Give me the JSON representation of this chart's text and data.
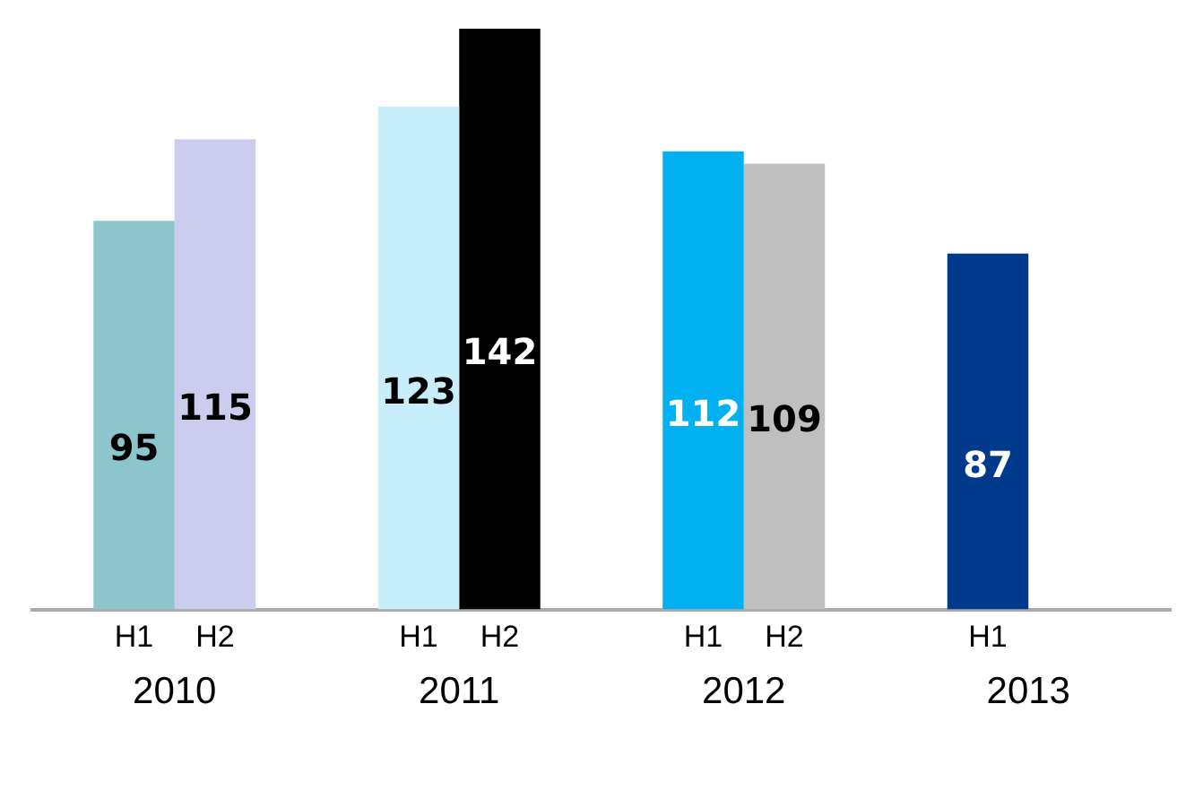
{
  "chart_data": {
    "type": "bar",
    "categories": [
      "2010",
      "2011",
      "2012",
      "2013"
    ],
    "series": [
      {
        "name": "H1",
        "values": [
          95,
          123,
          112,
          87
        ],
        "colors": [
          "#8cc5cc",
          "#c9eefb",
          "#00b0f0",
          "#003a8c"
        ]
      },
      {
        "name": "H2",
        "values": [
          115,
          142,
          109,
          null
        ],
        "colors": [
          "#ccccee",
          "#000000",
          "#bfbfbf",
          "#bfbfbf"
        ]
      }
    ],
    "data_labels": true,
    "legend": false,
    "grid": false,
    "tick_labels": "x"
  }
}
